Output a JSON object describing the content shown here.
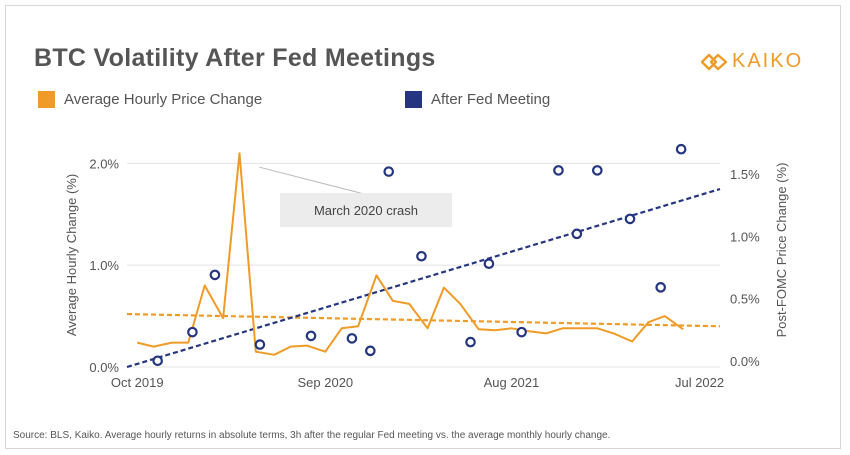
{
  "header": {
    "title": "BTC Volatility After Fed Meetings",
    "logo_text": "KAIKO"
  },
  "colors": {
    "orange": "#f09b27",
    "navy": "#26357f",
    "text": "#555555",
    "grid": "#e3e3e3"
  },
  "legend": [
    {
      "label": "Average Hourly Price Change",
      "color": "#f09b27"
    },
    {
      "label": "After Fed Meeting",
      "color": "#26357f"
    }
  ],
  "chart_data": {
    "type": "line",
    "title": "BTC Volatility After Fed Meetings",
    "x_range": [
      2019.7,
      2022.6
    ],
    "x_ticks": [
      {
        "label": "Oct 2019",
        "x": 2019.75
      },
      {
        "label": "Sep 2020",
        "x": 2020.67
      },
      {
        "label": "Aug 2021",
        "x": 2021.58
      },
      {
        "label": "Jul 2022",
        "x": 2022.5
      }
    ],
    "y_left": {
      "label": "Average Hourly Change (%)",
      "range": [
        0.0,
        2.2
      ],
      "ticks": [
        0.0,
        1.0,
        2.0
      ],
      "tick_labels": [
        "0.0%",
        "1.0%",
        "2.0%"
      ]
    },
    "y_right": {
      "label": "Post-FOMC Price Change (%)",
      "range": [
        -0.05,
        1.75
      ],
      "ticks": [
        0.0,
        0.5,
        1.0,
        1.5
      ],
      "tick_labels": [
        "0.0%",
        "0.5%",
        "1.0%",
        "1.5%"
      ]
    },
    "series": [
      {
        "name": "Average Hourly Price Change",
        "type": "line",
        "axis": "left",
        "color": "#f09b27",
        "points": [
          {
            "x": 2019.75,
            "y": 0.24
          },
          {
            "x": 2019.83,
            "y": 0.2
          },
          {
            "x": 2019.92,
            "y": 0.24
          },
          {
            "x": 2020.0,
            "y": 0.24
          },
          {
            "x": 2020.08,
            "y": 0.8
          },
          {
            "x": 2020.17,
            "y": 0.48
          },
          {
            "x": 2020.25,
            "y": 2.1
          },
          {
            "x": 2020.33,
            "y": 0.15
          },
          {
            "x": 2020.42,
            "y": 0.12
          },
          {
            "x": 2020.5,
            "y": 0.2
          },
          {
            "x": 2020.58,
            "y": 0.21
          },
          {
            "x": 2020.67,
            "y": 0.15
          },
          {
            "x": 2020.75,
            "y": 0.38
          },
          {
            "x": 2020.83,
            "y": 0.4
          },
          {
            "x": 2020.92,
            "y": 0.9
          },
          {
            "x": 2021.0,
            "y": 0.65
          },
          {
            "x": 2021.08,
            "y": 0.62
          },
          {
            "x": 2021.17,
            "y": 0.38
          },
          {
            "x": 2021.25,
            "y": 0.78
          },
          {
            "x": 2021.33,
            "y": 0.62
          },
          {
            "x": 2021.42,
            "y": 0.37
          },
          {
            "x": 2021.5,
            "y": 0.36
          },
          {
            "x": 2021.58,
            "y": 0.38
          },
          {
            "x": 2021.67,
            "y": 0.35
          },
          {
            "x": 2021.75,
            "y": 0.33
          },
          {
            "x": 2021.83,
            "y": 0.38
          },
          {
            "x": 2021.92,
            "y": 0.38
          },
          {
            "x": 2022.0,
            "y": 0.38
          },
          {
            "x": 2022.08,
            "y": 0.33
          },
          {
            "x": 2022.17,
            "y": 0.25
          },
          {
            "x": 2022.25,
            "y": 0.44
          },
          {
            "x": 2022.33,
            "y": 0.5
          },
          {
            "x": 2022.42,
            "y": 0.37
          }
        ]
      },
      {
        "name": "After Fed Meeting",
        "type": "scatter",
        "axis": "right",
        "color": "#26357f",
        "points": [
          {
            "x": 2019.85,
            "y": 0.0
          },
          {
            "x": 2020.02,
            "y": 0.23
          },
          {
            "x": 2020.13,
            "y": 0.69
          },
          {
            "x": 2020.35,
            "y": 0.13
          },
          {
            "x": 2020.6,
            "y": 0.2
          },
          {
            "x": 2020.8,
            "y": 0.18
          },
          {
            "x": 2020.89,
            "y": 0.08
          },
          {
            "x": 2020.98,
            "y": 1.52
          },
          {
            "x": 2021.14,
            "y": 0.84
          },
          {
            "x": 2021.38,
            "y": 0.15
          },
          {
            "x": 2021.47,
            "y": 0.78
          },
          {
            "x": 2021.63,
            "y": 0.23
          },
          {
            "x": 2021.81,
            "y": 1.53
          },
          {
            "x": 2021.9,
            "y": 1.02
          },
          {
            "x": 2022.0,
            "y": 1.53
          },
          {
            "x": 2022.16,
            "y": 1.14
          },
          {
            "x": 2022.31,
            "y": 0.59
          },
          {
            "x": 2022.41,
            "y": 1.7
          }
        ]
      },
      {
        "name": "Average Hourly Price Change trend",
        "type": "trendline",
        "axis": "left",
        "color": "#f09b27",
        "points": [
          {
            "x": 2019.7,
            "y": 0.52
          },
          {
            "x": 2022.6,
            "y": 0.4
          }
        ]
      },
      {
        "name": "After Fed Meeting trend",
        "type": "trendline",
        "axis": "right",
        "color": "#26357f",
        "points": [
          {
            "x": 2019.7,
            "y": -0.05
          },
          {
            "x": 2022.6,
            "y": 1.38
          }
        ]
      }
    ],
    "annotations": [
      {
        "text": "March 2020 crash",
        "target_x": 2020.25,
        "target_y": 2.1
      }
    ]
  },
  "footer": {
    "source": "Source: BLS, Kaiko. Average hourly returns in absolute terms, 3h after the regular Fed meeting vs. the average monthly hourly change."
  }
}
